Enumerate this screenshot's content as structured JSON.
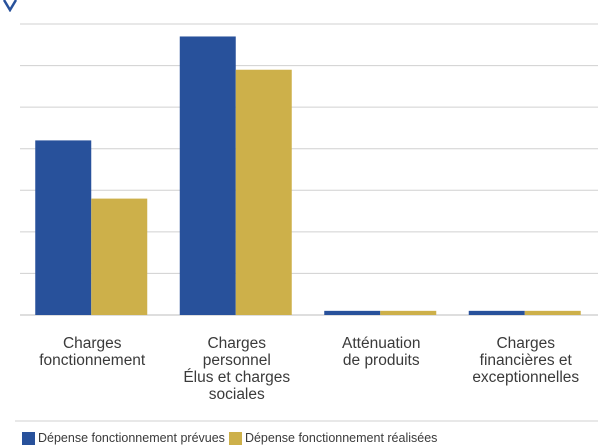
{
  "chart_data": {
    "type": "bar",
    "title": "",
    "xlabel": "",
    "ylabel": "",
    "grid": true,
    "ylim": [
      0,
      70
    ],
    "legend_position": "bottom-left",
    "categories": [
      [
        "Charges",
        "fonctionnement"
      ],
      [
        "Charges",
        "personnel",
        "Élus et charges",
        "sociales"
      ],
      [
        "Atténuation",
        "de produits"
      ],
      [
        "Charges",
        "financières et",
        "exceptionnelles"
      ]
    ],
    "series": [
      {
        "name": "Dépense fonctionnement prévues",
        "color": "#28519b",
        "values": [
          42,
          67,
          1,
          1
        ]
      },
      {
        "name": "Dépense fonctionnement réalisées",
        "color": "#cdb04a",
        "values": [
          28,
          59,
          1,
          1
        ]
      }
    ],
    "colors": {
      "grid": "#d0d0d0",
      "axis": "#bdbdbd",
      "text": "#3a3a3a",
      "accent": "#28519b"
    }
  }
}
